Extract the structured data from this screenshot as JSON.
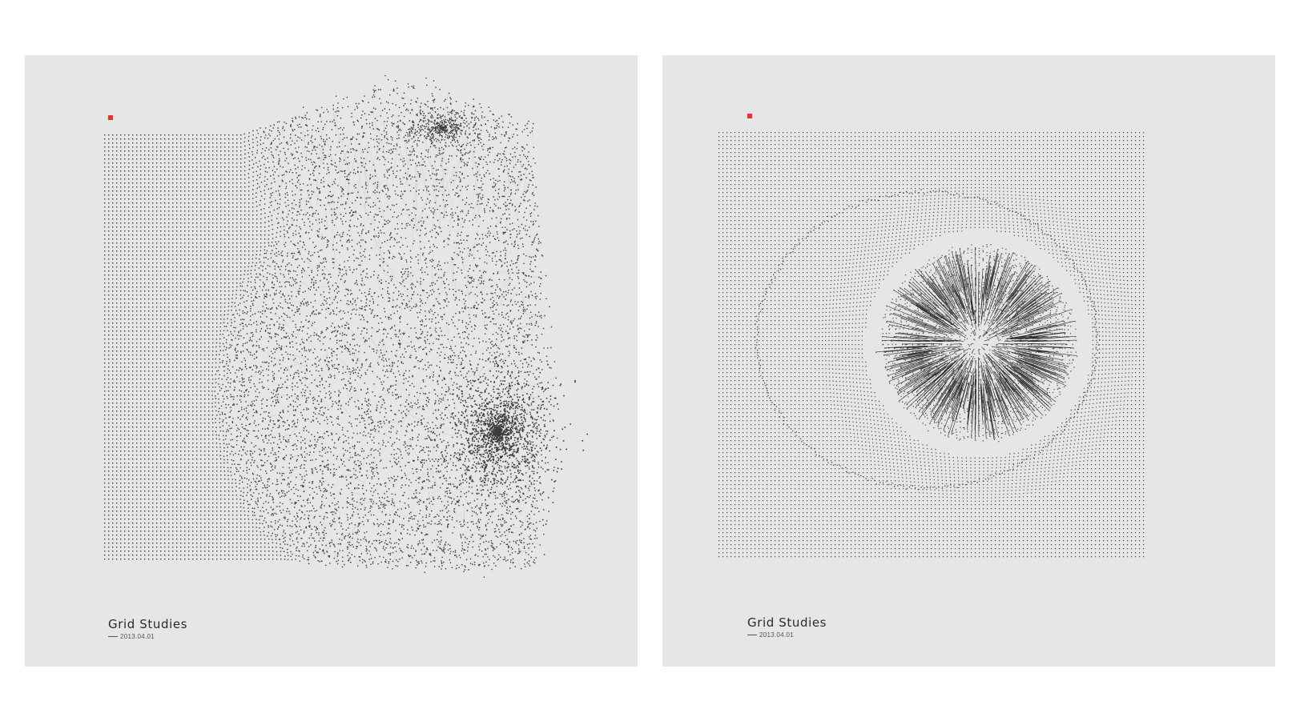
{
  "posters": [
    {
      "title": "Grid Studies",
      "date": "2013.04.01",
      "accent_color": "#e8332a",
      "background_color": "#e6e6e6"
    },
    {
      "title": "Grid Studies",
      "date": "2013.04.01",
      "accent_color": "#e8332a",
      "background_color": "#e6e6e6"
    }
  ]
}
